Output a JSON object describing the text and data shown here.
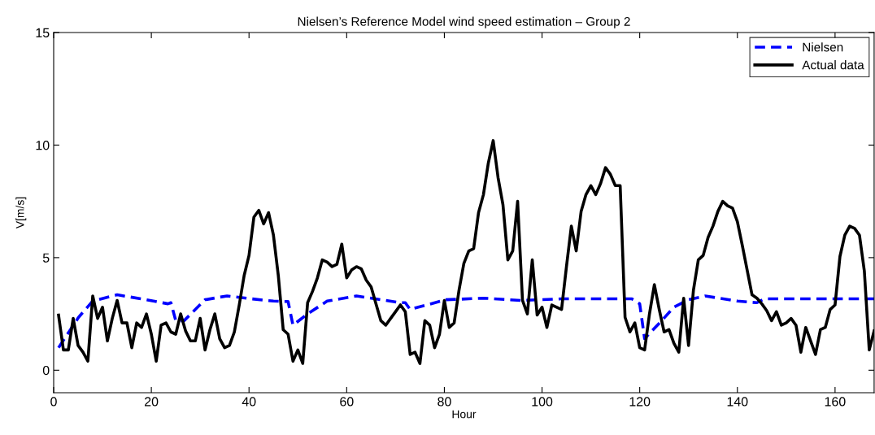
{
  "chart_data": {
    "type": "line",
    "title": "Nielsen’s Reference Model wind speed estimation – Group 2",
    "xlabel": "Hour",
    "ylabel": "V[m/s]",
    "xlim": [
      0,
      168
    ],
    "ylim": [
      -1,
      15
    ],
    "xticks": [
      0,
      20,
      40,
      60,
      80,
      100,
      120,
      140,
      160
    ],
    "yticks": [
      0,
      5,
      10,
      15
    ],
    "grid": false,
    "legend": "top right",
    "series": [
      {
        "name": "Nielsen",
        "color": "#0000ff",
        "line_style": "dashed",
        "x": [
          1,
          5.1,
          8,
          13,
          19,
          23.4,
          24,
          25,
          26.7,
          31,
          35.5,
          40.5,
          45,
          48,
          49,
          52,
          56,
          62,
          71,
          72,
          73,
          80.3,
          88,
          95.7,
          104,
          118.4,
          120,
          121,
          124.5,
          127,
          130,
          133.4,
          140,
          144,
          145.6,
          168
        ],
        "values": [
          1.0,
          2.35,
          3.07,
          3.35,
          3.13,
          2.95,
          3.0,
          2.2,
          2.2,
          3.13,
          3.3,
          3.17,
          3.07,
          3.05,
          2.0,
          2.5,
          3.07,
          3.3,
          3.0,
          3.0,
          2.7,
          3.13,
          3.2,
          3.1,
          3.17,
          3.17,
          2.95,
          1.4,
          2.2,
          2.8,
          3.13,
          3.3,
          3.07,
          3.0,
          3.17,
          3.17
        ]
      },
      {
        "name": "Actual data",
        "color": "#000000",
        "line_style": "solid",
        "x": [
          1,
          2,
          3,
          4,
          5,
          6,
          7,
          8,
          9,
          10,
          11,
          12,
          13,
          14,
          15,
          16,
          17,
          18,
          19,
          20,
          21,
          22,
          23,
          24,
          25,
          26,
          27,
          28,
          29,
          30,
          31,
          32,
          33,
          34,
          35,
          36,
          37,
          38,
          39,
          40,
          41,
          42,
          43,
          44,
          45,
          46,
          47,
          48,
          49,
          50,
          51,
          52,
          53,
          54,
          55,
          56,
          57,
          58,
          59,
          60,
          61,
          62,
          63,
          64,
          65,
          66,
          67,
          68,
          69,
          70,
          71,
          72,
          73,
          74,
          75,
          76,
          77,
          78,
          79,
          80,
          81,
          82,
          83,
          84,
          85,
          86,
          87,
          88,
          89,
          90,
          91,
          92,
          93,
          94,
          95,
          96,
          97,
          98,
          99,
          100,
          101,
          102,
          103,
          104,
          105,
          106,
          107,
          108,
          109,
          110,
          111,
          112,
          113,
          114,
          115,
          116,
          117,
          118,
          119,
          120,
          121,
          122,
          123,
          124,
          125,
          126,
          127,
          128,
          129,
          130,
          131,
          132,
          133,
          134,
          135,
          136,
          137,
          138,
          139,
          140,
          141,
          142,
          143,
          144,
          145,
          146,
          147,
          148,
          149,
          150,
          151,
          152,
          153,
          154,
          155,
          156,
          157,
          158,
          159,
          160,
          161,
          162,
          163,
          164,
          165,
          166,
          167,
          168
        ],
        "values": [
          2.45,
          0.9,
          0.9,
          2.3,
          1.1,
          0.8,
          0.4,
          3.3,
          2.3,
          2.8,
          1.3,
          2.3,
          3.1,
          2.1,
          2.1,
          1.0,
          2.1,
          1.9,
          2.5,
          1.6,
          0.4,
          2.0,
          2.1,
          1.7,
          1.6,
          2.5,
          1.75,
          1.3,
          1.3,
          2.3,
          0.9,
          1.8,
          2.5,
          1.4,
          1.0,
          1.1,
          1.7,
          2.9,
          4.2,
          5.1,
          6.8,
          7.1,
          6.5,
          7.0,
          6.0,
          4.2,
          1.8,
          1.6,
          0.4,
          0.9,
          0.3,
          3.0,
          3.5,
          4.1,
          4.9,
          4.8,
          4.6,
          4.7,
          5.6,
          4.1,
          4.45,
          4.6,
          4.5,
          4.0,
          3.7,
          2.95,
          2.2,
          2.0,
          2.3,
          2.6,
          2.9,
          2.6,
          0.7,
          0.8,
          0.3,
          2.2,
          2.0,
          1.0,
          1.6,
          3.1,
          1.9,
          2.1,
          3.55,
          4.75,
          5.3,
          5.4,
          7.0,
          7.8,
          9.2,
          10.2,
          8.55,
          7.35,
          4.9,
          5.3,
          7.5,
          3.1,
          2.5,
          4.9,
          2.45,
          2.8,
          1.9,
          2.9,
          2.8,
          2.7,
          4.6,
          6.4,
          5.3,
          7.05,
          7.8,
          8.2,
          7.8,
          8.3,
          9.0,
          8.7,
          8.2,
          8.2,
          2.35,
          1.7,
          2.1,
          1.0,
          0.9,
          2.5,
          3.8,
          2.7,
          1.7,
          1.8,
          1.2,
          0.8,
          3.2,
          1.1,
          3.55,
          4.9,
          5.1,
          5.9,
          6.4,
          7.05,
          7.5,
          7.3,
          7.2,
          6.6,
          5.55,
          4.45,
          3.35,
          3.2,
          2.95,
          2.65,
          2.2,
          2.6,
          2.0,
          2.1,
          2.3,
          2.0,
          0.8,
          1.9,
          1.3,
          0.7,
          1.8,
          1.9,
          2.7,
          2.9,
          5.05,
          6.0,
          6.4,
          6.3,
          6.0,
          4.4,
          0.9,
          1.75
        ]
      }
    ]
  }
}
